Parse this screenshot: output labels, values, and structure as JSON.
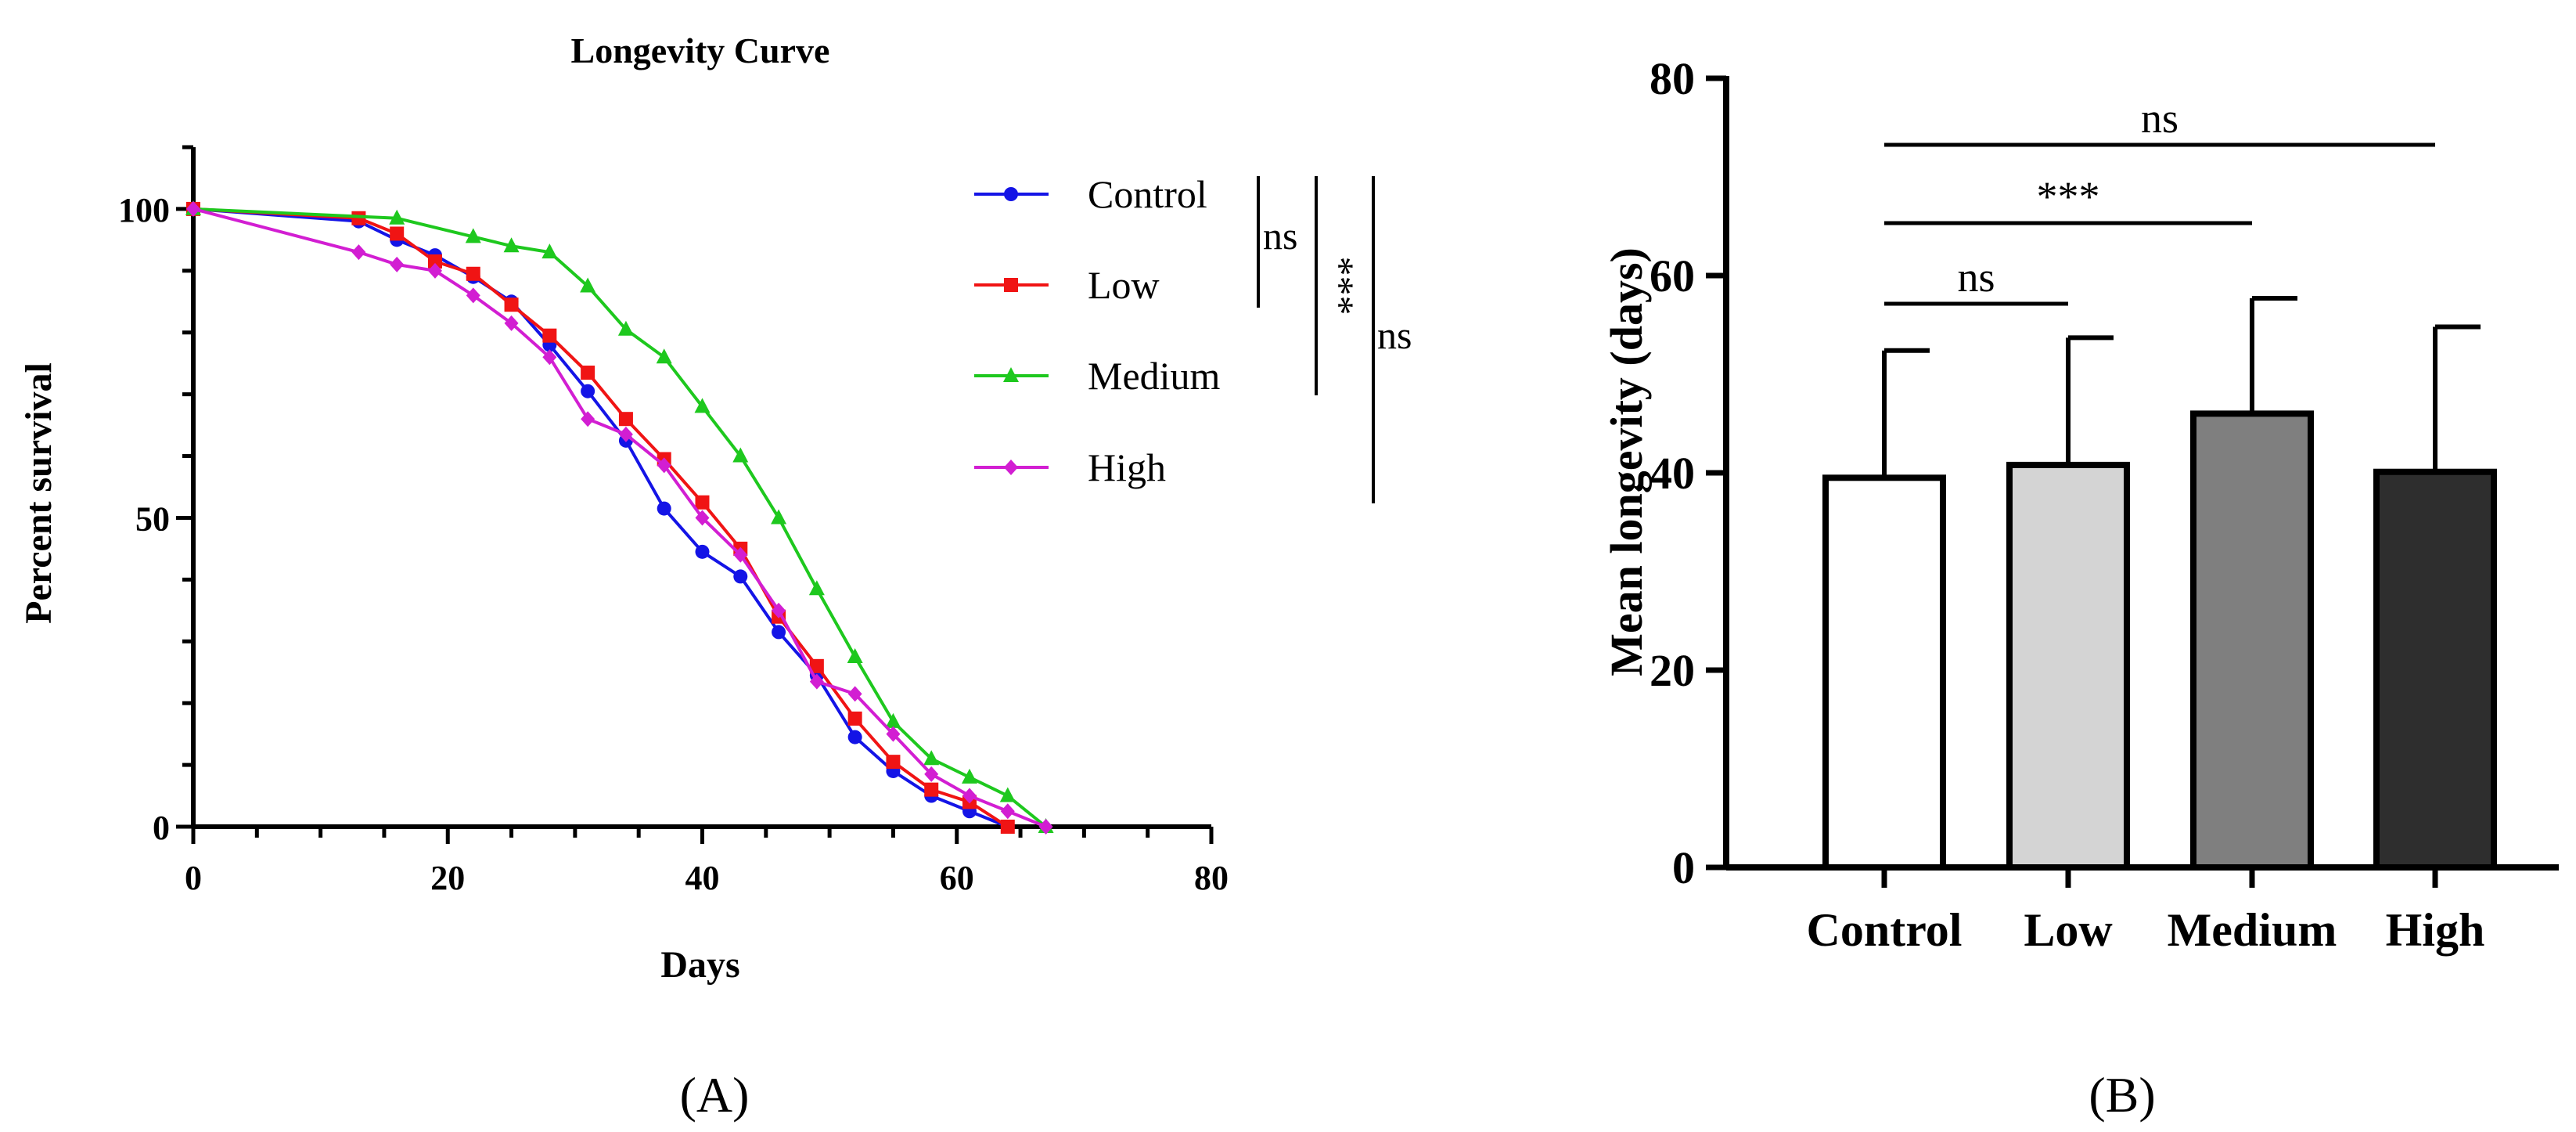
{
  "chart_data": [
    {
      "type": "line",
      "title": "Longevity Curve",
      "xlabel": "Days",
      "ylabel": "Percent survival",
      "xlim": [
        0,
        80
      ],
      "ylim": [
        0,
        110
      ],
      "xticks": [
        "0",
        "20",
        "40",
        "60",
        "80"
      ],
      "yticks": [
        "0",
        "50",
        "100"
      ],
      "legend_position": "top-right",
      "series": [
        {
          "name": "Control",
          "color": "#1414e6",
          "marker": "circle",
          "x": [
            0,
            13,
            16,
            19,
            22,
            25,
            28,
            31,
            34,
            37,
            40,
            43,
            46,
            49,
            52,
            55,
            58,
            61,
            64
          ],
          "y": [
            100,
            98,
            95,
            92.5,
            89,
            85,
            78,
            70.5,
            62.5,
            51.5,
            44.5,
            40.5,
            31.5,
            24.5,
            14.5,
            9,
            5,
            2.5,
            0
          ]
        },
        {
          "name": "Low",
          "color": "#f01414",
          "marker": "square",
          "x": [
            0,
            13,
            16,
            19,
            22,
            25,
            28,
            31,
            34,
            37,
            40,
            43,
            46,
            49,
            52,
            55,
            58,
            61,
            64
          ],
          "y": [
            100,
            98.5,
            96,
            91.5,
            89.5,
            84.5,
            79.5,
            73.5,
            66,
            59.5,
            52.5,
            45,
            34,
            26,
            17.5,
            10.5,
            6,
            4,
            0
          ]
        },
        {
          "name": "Medium",
          "color": "#1ec81e",
          "marker": "triangle",
          "x": [
            0,
            16,
            22,
            25,
            28,
            31,
            34,
            37,
            40,
            43,
            46,
            49,
            52,
            55,
            58,
            61,
            64,
            67
          ],
          "y": [
            100,
            98.5,
            95.5,
            94,
            93,
            87.5,
            80.5,
            76,
            68,
            60,
            50,
            38.5,
            27.5,
            17,
            11,
            8,
            5,
            0
          ]
        },
        {
          "name": "High",
          "color": "#d21ed2",
          "marker": "diamond",
          "x": [
            0,
            13,
            16,
            19,
            22,
            25,
            28,
            31,
            34,
            37,
            40,
            43,
            46,
            49,
            52,
            55,
            58,
            61,
            64,
            67
          ],
          "y": [
            100,
            93,
            91,
            90,
            86,
            81.5,
            76,
            66,
            63.5,
            58.5,
            50,
            44,
            35,
            23.5,
            21.5,
            15,
            8.5,
            5,
            2.5,
            0
          ]
        }
      ],
      "significance": [
        "ns",
        "***",
        "ns"
      ],
      "panel_label": "(A)"
    },
    {
      "type": "bar",
      "title": "",
      "xlabel": "",
      "ylabel": "Mean longevity (days)",
      "ylim": [
        0,
        80
      ],
      "yticks": [
        "0",
        "20",
        "40",
        "60",
        "80"
      ],
      "categories": [
        "Control",
        "Low",
        "Medium",
        "High"
      ],
      "values": [
        39.5,
        40.8,
        46,
        40.1
      ],
      "errors": [
        12.9,
        12.9,
        11.7,
        14.7
      ],
      "bar_colors": [
        "#ffffff",
        "#d4d4d4",
        "#7f7f7f",
        "#2e2e2e"
      ],
      "significance": [
        {
          "from": "Control",
          "to": "Low",
          "label": "ns"
        },
        {
          "from": "Control",
          "to": "Medium",
          "label": "***"
        },
        {
          "from": "Control",
          "to": "High",
          "label": "ns"
        }
      ],
      "panel_label": "(B)"
    }
  ]
}
